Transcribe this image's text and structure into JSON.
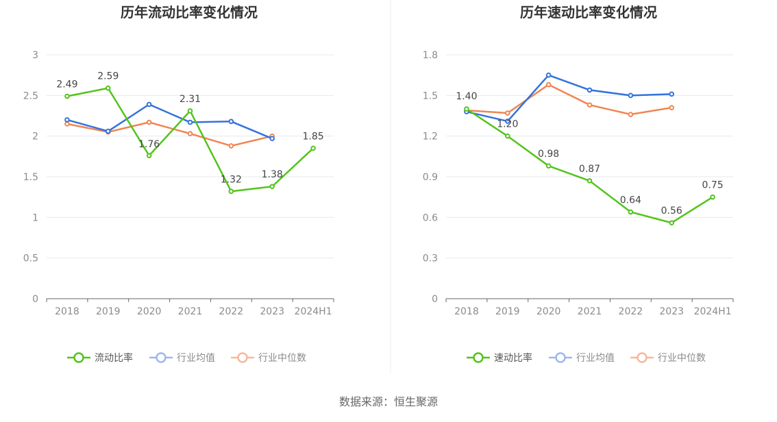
{
  "colors": {
    "primary": "#52c41a",
    "industry_avg": "#3372dd",
    "industry_median": "#f08552",
    "legend_avg_faded": "#9bb8ee",
    "legend_median_faded": "#f7b79a",
    "grid": "#e6e8ef",
    "axis": "#666666",
    "divider": "#eeeeee"
  },
  "source": "数据来源：恒生聚源",
  "chart_data": [
    {
      "type": "line",
      "title": "历年流动比率变化情况",
      "categories": [
        "2018",
        "2019",
        "2020",
        "2021",
        "2022",
        "2023",
        "2024H1"
      ],
      "ylim": [
        0,
        3
      ],
      "yticks": [
        0,
        0.5,
        1,
        1.5,
        2,
        2.5,
        3
      ],
      "ytick_labels": [
        "0",
        "0.5",
        "1",
        "1.5",
        "2",
        "2.5",
        "3"
      ],
      "grid": true,
      "legend_position": "bottom",
      "series": [
        {
          "name": "流动比率",
          "values": [
            2.49,
            2.59,
            1.76,
            2.31,
            1.32,
            1.38,
            1.85
          ],
          "labels": [
            "2.49",
            "2.59",
            "1.76",
            "2.31",
            "1.32",
            "1.38",
            "1.85"
          ]
        },
        {
          "name": "行业均值",
          "values": [
            2.2,
            2.06,
            2.39,
            2.17,
            2.18,
            1.97,
            null
          ]
        },
        {
          "name": "行业中位数",
          "values": [
            2.15,
            2.05,
            2.17,
            2.03,
            1.88,
            2.0,
            null
          ]
        }
      ]
    },
    {
      "type": "line",
      "title": "历年速动比率变化情况",
      "categories": [
        "2018",
        "2019",
        "2020",
        "2021",
        "2022",
        "2023",
        "2024H1"
      ],
      "ylim": [
        0,
        1.8
      ],
      "yticks": [
        0,
        0.3,
        0.6,
        0.9,
        1.2,
        1.5,
        1.8
      ],
      "ytick_labels": [
        "0",
        "0.3",
        "0.6",
        "0.9",
        "1.2",
        "1.5",
        "1.8"
      ],
      "grid": true,
      "legend_position": "bottom",
      "series": [
        {
          "name": "速动比率",
          "values": [
            1.4,
            1.2,
            0.98,
            0.87,
            0.64,
            0.56,
            0.75
          ],
          "labels": [
            "1.40",
            "1.20",
            "0.98",
            "0.87",
            "0.64",
            "0.56",
            "0.75"
          ]
        },
        {
          "name": "行业均值",
          "values": [
            1.38,
            1.31,
            1.65,
            1.54,
            1.5,
            1.51,
            null
          ]
        },
        {
          "name": "行业中位数",
          "values": [
            1.39,
            1.37,
            1.58,
            1.43,
            1.36,
            1.41,
            null
          ]
        }
      ]
    }
  ]
}
